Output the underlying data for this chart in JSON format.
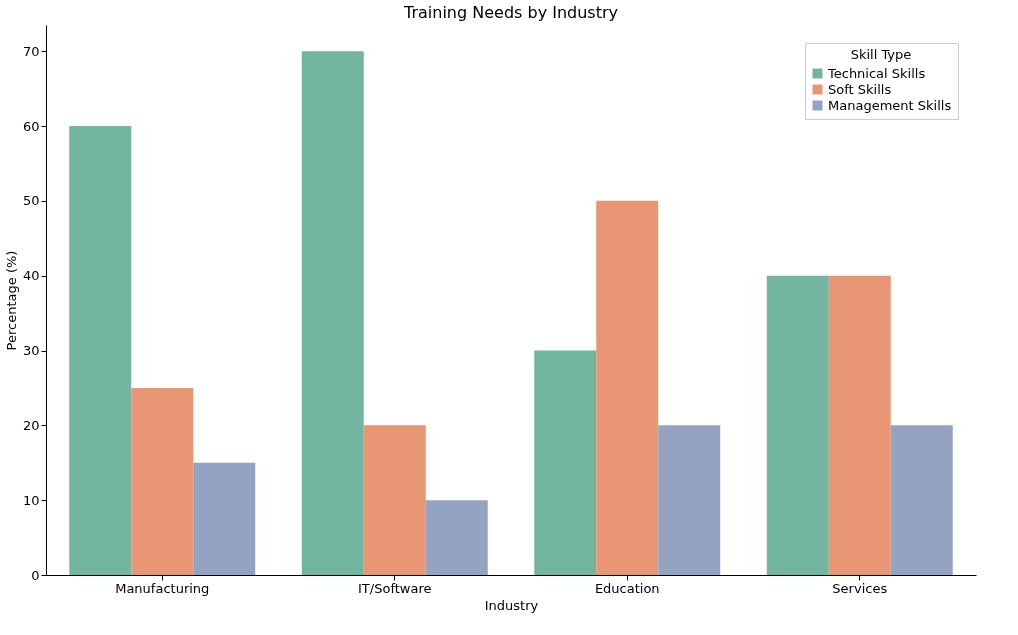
{
  "chart_data": {
    "type": "bar",
    "title": "Training Needs by Industry",
    "xlabel": "Industry",
    "ylabel": "Percentage (%)",
    "legend_title": "Skill Type",
    "categories": [
      "Manufacturing",
      "IT/Software",
      "Education",
      "Services"
    ],
    "series": [
      {
        "name": "Technical Skills",
        "color": "#72b6a1",
        "values": [
          60,
          70,
          30,
          40
        ]
      },
      {
        "name": "Soft Skills",
        "color": "#e99675",
        "values": [
          25,
          20,
          50,
          40
        ]
      },
      {
        "name": "Management Skills",
        "color": "#95a3c3",
        "values": [
          15,
          10,
          20,
          20
        ]
      }
    ],
    "ylim": [
      0,
      73.5
    ],
    "yticks": [
      0,
      10,
      20,
      30,
      40,
      50,
      60,
      70
    ],
    "grid": false,
    "legend": "top right"
  }
}
